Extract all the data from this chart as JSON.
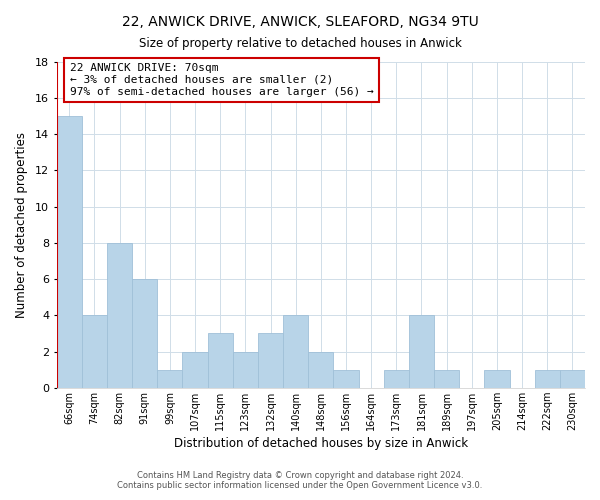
{
  "title": "22, ANWICK DRIVE, ANWICK, SLEAFORD, NG34 9TU",
  "subtitle": "Size of property relative to detached houses in Anwick",
  "xlabel": "Distribution of detached houses by size in Anwick",
  "ylabel": "Number of detached properties",
  "bar_labels": [
    "66sqm",
    "74sqm",
    "82sqm",
    "91sqm",
    "99sqm",
    "107sqm",
    "115sqm",
    "123sqm",
    "132sqm",
    "140sqm",
    "148sqm",
    "156sqm",
    "164sqm",
    "173sqm",
    "181sqm",
    "189sqm",
    "197sqm",
    "205sqm",
    "214sqm",
    "222sqm",
    "230sqm"
  ],
  "bar_values": [
    15,
    4,
    8,
    6,
    1,
    2,
    3,
    2,
    3,
    4,
    2,
    1,
    0,
    1,
    4,
    1,
    0,
    1,
    0,
    1,
    1
  ],
  "bar_color": "#b8d4e8",
  "bar_edgecolor": "#a0c0d8",
  "ylim": [
    0,
    18
  ],
  "yticks": [
    0,
    2,
    4,
    6,
    8,
    10,
    12,
    14,
    16,
    18
  ],
  "annotation_title": "22 ANWICK DRIVE: 70sqm",
  "annotation_line1": "← 3% of detached houses are smaller (2)",
  "annotation_line2": "97% of semi-detached houses are larger (56) →",
  "marker_line_color": "#cc0000",
  "annotation_box_edgecolor": "#cc0000",
  "grid_color": "#d0dde8",
  "footer_line1": "Contains HM Land Registry data © Crown copyright and database right 2024.",
  "footer_line2": "Contains public sector information licensed under the Open Government Licence v3.0."
}
